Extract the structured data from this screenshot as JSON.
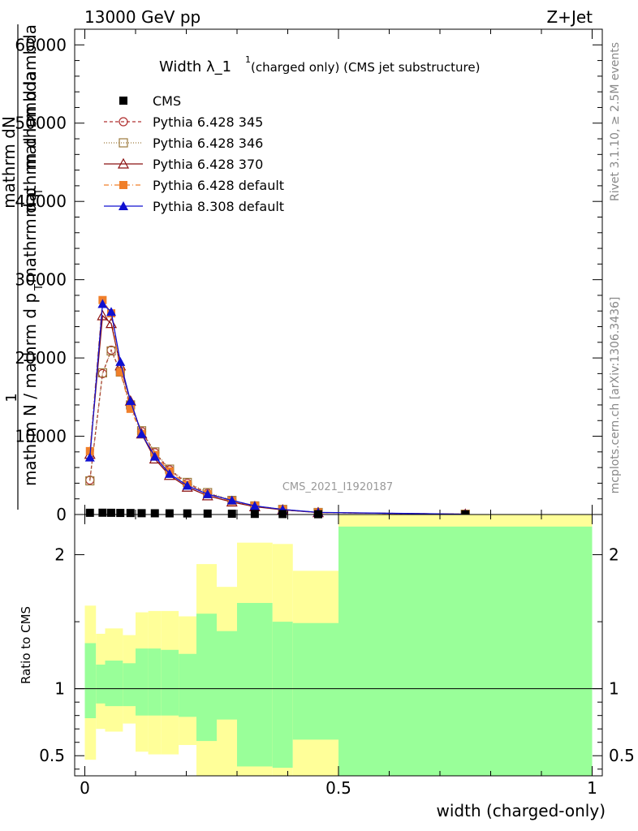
{
  "header": {
    "left": "13000 GeV pp",
    "right": "Z+Jet"
  },
  "title": {
    "main": "Width λ_1",
    "sup": "1",
    "sub": " (charged only) (CMS jet substructure)"
  },
  "side_labels": {
    "rivet": "Rivet 3.1.10, ≥ 2.5M events",
    "mcplots": "mcplots.cern.ch [arXiv:1306.3436]"
  },
  "watermark": "CMS_2021_I1920187",
  "ylabel_top": {
    "line1": "1",
    "numerator": "mathrm dN",
    "numerator2": "mathrm d lambda",
    "denominator": "mathrm N / mathrm d p",
    "denominator_sub": "T",
    "denominator2": "mathrm d p",
    "denominator2_sub": "T",
    "denominator3": "mathrm d lambda"
  },
  "ylabel_bottom": "Ratio to CMS",
  "xlabel": "width (charged-only)",
  "legend": [
    {
      "label": "CMS",
      "color": "#000000",
      "marker": "square-filled",
      "dash": "none"
    },
    {
      "label": "Pythia 6.428 345",
      "color": "#b03030",
      "marker": "circle-open",
      "dash": "4,3"
    },
    {
      "label": "Pythia 6.428 346",
      "color": "#9c7a3c",
      "marker": "square-open",
      "dash": "1,2"
    },
    {
      "label": "Pythia 6.428 370",
      "color": "#8b1010",
      "marker": "triangle-open",
      "dash": "none"
    },
    {
      "label": "Pythia 6.428 default",
      "color": "#f07f2a",
      "marker": "square-filled",
      "dash": "6,3,1,3"
    },
    {
      "label": "Pythia 8.308 default",
      "color": "#1010d0",
      "marker": "triangle-filled",
      "dash": "none"
    }
  ],
  "chart_data": {
    "type": "line",
    "title": "Width λ_1^1 (charged only) (CMS jet substructure)",
    "xlabel": "width (charged-only)",
    "ylabel": "1/N dN/dp_T dλ",
    "xlim": [
      -0.02,
      1.02
    ],
    "ylim": [
      0,
      62000
    ],
    "yticks": [
      0,
      10000,
      20000,
      30000,
      40000,
      50000,
      60000
    ],
    "ytick_labels": [
      "0",
      "10000",
      "20000",
      "30000",
      "40000",
      "50000",
      "60000"
    ],
    "xticks": [
      0,
      0.5,
      1
    ],
    "xtick_labels": [
      "0",
      "0.5",
      "1"
    ],
    "x": [
      0.01,
      0.035,
      0.052,
      0.07,
      0.09,
      0.112,
      0.138,
      0.167,
      0.202,
      0.242,
      0.29,
      0.335,
      0.39,
      0.46,
      0.75
    ],
    "series": [
      {
        "name": "CMS",
        "values": [
          220,
          230,
          220,
          200,
          190,
          170,
          160,
          150,
          140,
          120,
          100,
          80,
          60,
          40,
          10
        ]
      },
      {
        "name": "Pythia 6.428 345",
        "values": [
          4400,
          18000,
          21000,
          18300,
          13900,
          10600,
          7900,
          5700,
          4000,
          2700,
          1800,
          1100,
          600,
          250,
          40
        ]
      },
      {
        "name": "Pythia 6.428 346",
        "values": [
          4300,
          18100,
          20900,
          18200,
          14000,
          10700,
          8000,
          5800,
          4100,
          2800,
          1800,
          1100,
          650,
          260,
          40
        ]
      },
      {
        "name": "Pythia 6.428 370",
        "values": [
          7700,
          25400,
          24400,
          19000,
          14500,
          10300,
          7100,
          5000,
          3500,
          2400,
          1600,
          1000,
          600,
          250,
          40
        ]
      },
      {
        "name": "Pythia 6.428 default",
        "values": [
          8100,
          27400,
          25700,
          18200,
          13500,
          10300,
          7600,
          5500,
          3800,
          2600,
          1700,
          1100,
          650,
          260,
          40
        ]
      },
      {
        "name": "Pythia 8.308 default",
        "values": [
          7300,
          26900,
          25900,
          19500,
          14500,
          10300,
          7400,
          5200,
          3700,
          2600,
          1800,
          1100,
          650,
          270,
          40
        ]
      }
    ],
    "ratio": {
      "ylabel": "Ratio to CMS",
      "ylim": [
        0.35,
        2.3
      ],
      "yticks": [
        0.5,
        1,
        2
      ],
      "ytick_labels": [
        "0.5",
        "1",
        "2"
      ],
      "bins": [
        {
          "lo": 0.0,
          "hi": 0.022,
          "yellow": [
            0.47,
            1.62
          ],
          "green": [
            0.78,
            1.34
          ]
        },
        {
          "lo": 0.022,
          "hi": 0.04,
          "yellow": [
            0.7,
            1.41
          ],
          "green": [
            0.89,
            1.18
          ]
        },
        {
          "lo": 0.04,
          "hi": 0.075,
          "yellow": [
            0.68,
            1.45
          ],
          "green": [
            0.87,
            1.21
          ]
        },
        {
          "lo": 0.075,
          "hi": 0.1,
          "yellow": [
            0.74,
            1.4
          ],
          "green": [
            0.87,
            1.19
          ]
        },
        {
          "lo": 0.1,
          "hi": 0.125,
          "yellow": [
            0.53,
            1.57
          ],
          "green": [
            0.8,
            1.3
          ]
        },
        {
          "lo": 0.125,
          "hi": 0.15,
          "yellow": [
            0.51,
            1.58
          ],
          "green": [
            0.8,
            1.3
          ]
        },
        {
          "lo": 0.15,
          "hi": 0.185,
          "yellow": [
            0.51,
            1.58
          ],
          "green": [
            0.8,
            1.29
          ]
        },
        {
          "lo": 0.185,
          "hi": 0.22,
          "yellow": [
            0.58,
            1.54
          ],
          "green": [
            0.79,
            1.26
          ]
        },
        {
          "lo": 0.22,
          "hi": 0.26,
          "yellow": [
            0.2,
            1.93
          ],
          "green": [
            0.61,
            1.56
          ]
        },
        {
          "lo": 0.26,
          "hi": 0.3,
          "yellow": [
            0.24,
            1.76
          ],
          "green": [
            0.77,
            1.43
          ]
        },
        {
          "lo": 0.3,
          "hi": 0.37,
          "yellow": [
            0.05,
            2.09
          ],
          "green": [
            0.42,
            1.64
          ]
        },
        {
          "lo": 0.37,
          "hi": 0.41,
          "yellow": [
            0.1,
            2.08
          ],
          "green": [
            0.41,
            1.5
          ]
        },
        {
          "lo": 0.41,
          "hi": 0.5,
          "yellow": [
            0.1,
            1.88
          ],
          "green": [
            0.62,
            1.49
          ]
        },
        {
          "lo": 0.5,
          "hi": 1.0,
          "yellow": [
            0.1,
            2.3
          ],
          "green": [
            0.3,
            2.21
          ]
        }
      ]
    }
  }
}
